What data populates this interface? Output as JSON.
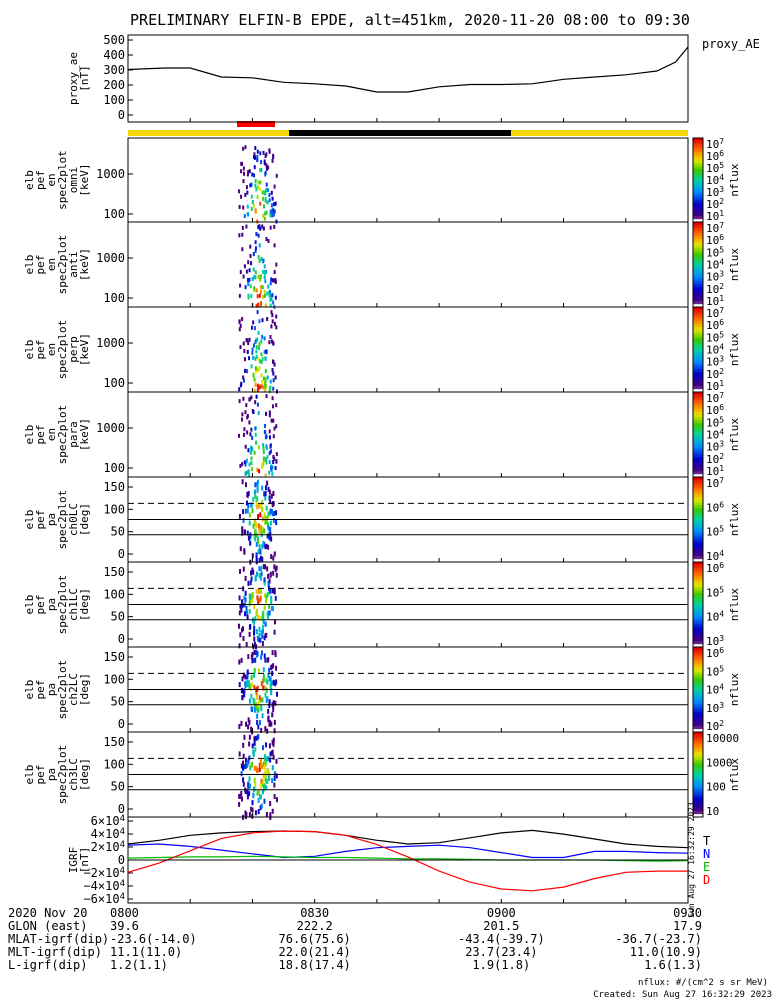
{
  "title": "PRELIMINARY ELFIN-B EPDE, alt=451km, 2020-11-20 08:00 to 09:30",
  "created": "Created: Sun Aug 27 16:32:29 2023",
  "nflux_units": "nflux: #/(cm^2 s sr MeV)",
  "side_stamp": "Sun Aug 27 16:32:29 2023",
  "colors": {
    "science_zone": "#ff0000",
    "sunlit": "#f5d800",
    "eclipse": "#000000",
    "T": "#000000",
    "N": "#0000ff",
    "E": "#00bb00",
    "D": "#ff0000"
  },
  "panels": [
    {
      "id": "ae",
      "ylabel": [
        "proxy_ae",
        "[nT]"
      ],
      "right_label": "proxy_AE",
      "yticks": [
        "500",
        "400",
        "300",
        "200",
        "100",
        "0"
      ]
    },
    {
      "id": "omni",
      "ylabel": [
        "elb",
        "pef",
        "en",
        "spec2plot",
        "omni",
        "[keV]"
      ],
      "yticks": [
        "1000",
        "100"
      ],
      "cbar_label": "nflux",
      "cbar_ticks": [
        "10^7",
        "10^6",
        "10^5",
        "10^4",
        "10^3",
        "10^2",
        "10^1"
      ]
    },
    {
      "id": "anti",
      "ylabel": [
        "elb",
        "pef",
        "en",
        "spec2plot",
        "anti",
        "[keV]"
      ],
      "yticks": [
        "1000",
        "100"
      ],
      "cbar_label": "nflux",
      "cbar_ticks": [
        "10^7",
        "10^6",
        "10^5",
        "10^4",
        "10^3",
        "10^2",
        "10^1"
      ]
    },
    {
      "id": "perp",
      "ylabel": [
        "elb",
        "pef",
        "en",
        "spec2plot",
        "perp",
        "[keV]"
      ],
      "yticks": [
        "1000",
        "100"
      ],
      "cbar_label": "nflux",
      "cbar_ticks": [
        "10^7",
        "10^6",
        "10^5",
        "10^4",
        "10^3",
        "10^2",
        "10^1"
      ]
    },
    {
      "id": "para",
      "ylabel": [
        "elb",
        "pef",
        "en",
        "spec2plot",
        "para",
        "[keV]"
      ],
      "yticks": [
        "1000",
        "100"
      ],
      "cbar_label": "nflux",
      "cbar_ticks": [
        "10^7",
        "10^6",
        "10^5",
        "10^4",
        "10^3",
        "10^2",
        "10^1"
      ]
    },
    {
      "id": "ch0",
      "ylabel": [
        "elb",
        "pef",
        "pa",
        "spec2plot",
        "ch0LC",
        "[deg]"
      ],
      "yticks": [
        "150",
        "100",
        "50",
        "0"
      ],
      "cbar_label": "nflux",
      "cbar_ticks": [
        "10^7",
        "10^6",
        "10^5",
        "10^4"
      ]
    },
    {
      "id": "ch1",
      "ylabel": [
        "elb",
        "pef",
        "pa",
        "spec2plot",
        "ch1LC",
        "[deg]"
      ],
      "yticks": [
        "150",
        "100",
        "50",
        "0"
      ],
      "cbar_label": "nflux",
      "cbar_ticks": [
        "10^6",
        "10^5",
        "10^4",
        "10^3"
      ]
    },
    {
      "id": "ch2",
      "ylabel": [
        "elb",
        "pef",
        "pa",
        "spec2plot",
        "ch2LC",
        "[deg]"
      ],
      "yticks": [
        "150",
        "100",
        "50",
        "0"
      ],
      "cbar_label": "nflux",
      "cbar_ticks": [
        "10^6",
        "10^5",
        "10^4",
        "10^3",
        "10^2"
      ]
    },
    {
      "id": "ch3",
      "ylabel": [
        "elb",
        "pef",
        "pa",
        "spec2plot",
        "ch3LC",
        "[deg]"
      ],
      "yticks": [
        "150",
        "100",
        "50",
        "0"
      ],
      "cbar_label": "nflux",
      "cbar_ticks": [
        "10000",
        "1000",
        "100",
        "10"
      ]
    },
    {
      "id": "igrf",
      "ylabel": [
        "IGRF",
        "[nT]"
      ],
      "yticks": [
        "6×10^4",
        "4×10^4",
        "2×10^4",
        "0",
        "−2×10^4",
        "−4×10^4",
        "−6×10^4"
      ],
      "legend": [
        "T",
        "N",
        "E",
        "D"
      ]
    }
  ],
  "footer": {
    "rows": [
      {
        "label": "2020 Nov 20",
        "values": [
          "0800",
          "0830",
          "0900",
          "0930"
        ]
      },
      {
        "label": "GLON (east)",
        "values": [
          "39.6",
          "222.2",
          "201.5",
          "17.9"
        ]
      },
      {
        "label": "MLAT-igrf(dip)",
        "values": [
          "-23.6(-14.0)",
          "76.6(75.6)",
          "-43.4(-39.7)",
          "-36.7(-23.7)"
        ]
      },
      {
        "label": "MLT-igrf(dip)",
        "values": [
          "11.1(11.0)",
          "22.0(21.4)",
          "23.7(23.4)",
          "11.0(10.9)"
        ]
      },
      {
        "label": "L-igrf(dip)",
        "values": [
          "1.2(1.1)",
          "18.8(17.4)",
          "1.9(1.8)",
          "1.6(1.3)"
        ]
      }
    ]
  },
  "chart_data": [
    {
      "type": "line",
      "panel": "ae",
      "ylabel": "proxy_ae [nT]",
      "ylim": [
        0,
        500
      ],
      "x": [
        "08:00",
        "08:06",
        "08:10",
        "08:15",
        "08:20",
        "08:25",
        "08:30",
        "08:35",
        "08:40",
        "08:45",
        "08:50",
        "08:55",
        "09:00",
        "09:05",
        "09:10",
        "09:15",
        "09:20",
        "09:25",
        "09:28",
        "09:30"
      ],
      "series": [
        {
          "name": "proxy_AE",
          "values": [
            310,
            320,
            320,
            260,
            255,
            225,
            215,
            200,
            160,
            160,
            195,
            210,
            210,
            215,
            245,
            260,
            275,
            300,
            360,
            460
          ]
        }
      ]
    },
    {
      "type": "line",
      "panel": "igrf",
      "ylabel": "IGRF [nT]",
      "ylim": [
        -60000,
        60000
      ],
      "x": [
        "08:00",
        "08:05",
        "08:10",
        "08:15",
        "08:20",
        "08:25",
        "08:30",
        "08:35",
        "08:40",
        "08:45",
        "08:50",
        "08:55",
        "09:00",
        "09:05",
        "09:10",
        "09:15",
        "09:20",
        "09:25",
        "09:30"
      ],
      "series": [
        {
          "name": "T",
          "values": [
            26000,
            32000,
            40000,
            44000,
            46000,
            47000,
            46000,
            40000,
            32000,
            26000,
            28000,
            36000,
            44000,
            48000,
            42000,
            34000,
            26000,
            22000,
            20000
          ]
        },
        {
          "name": "N",
          "values": [
            24000,
            26000,
            22000,
            16000,
            10000,
            4000,
            6000,
            14000,
            20000,
            22000,
            24000,
            20000,
            12000,
            4000,
            4000,
            14000,
            14000,
            12000,
            11000
          ]
        },
        {
          "name": "E",
          "values": [
            3000,
            4000,
            5000,
            5000,
            6000,
            5000,
            4000,
            4000,
            3000,
            2000,
            2000,
            1000,
            0,
            0,
            0,
            0,
            -1000,
            -2000,
            -1000
          ]
        },
        {
          "name": "D",
          "values": [
            -20000,
            -5000,
            15000,
            35000,
            44000,
            47000,
            46000,
            40000,
            25000,
            5000,
            -18000,
            -36000,
            -47000,
            -50000,
            -44000,
            -30000,
            -20000,
            -18000,
            -18000
          ]
        }
      ]
    }
  ]
}
